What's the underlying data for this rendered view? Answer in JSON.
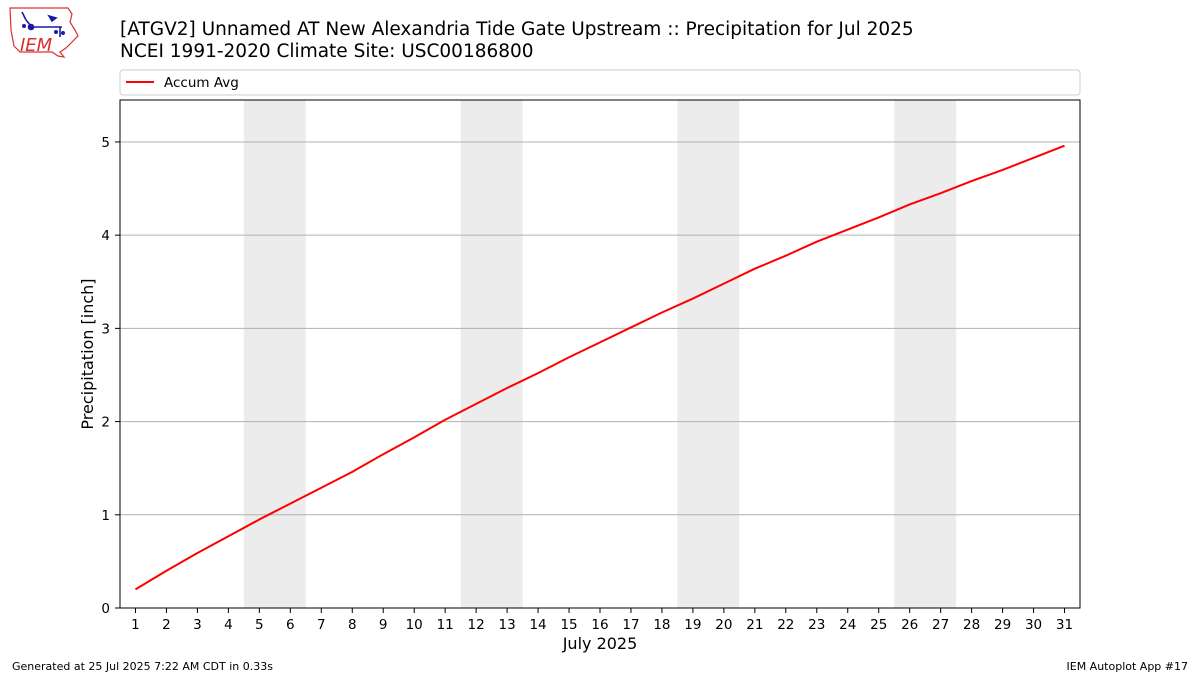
{
  "header": {
    "title_line1": "[ATGV2] Unnamed  AT New Alexandria Tide Gate Upstream :: Precipitation for Jul 2025",
    "title_line2": "NCEI 1991-2020 Climate Site: USC00186800",
    "logo_text": "IEM"
  },
  "footer": {
    "generated": "Generated at 25 Jul 2025 7:22 AM CDT in 0.33s",
    "app": "IEM Autoplot App #17"
  },
  "colors": {
    "line": "#ff0000",
    "weekend_band": "#ececec",
    "grid": "#b0b0b0",
    "logo": "#1a1aa8",
    "logo_text": "#d93030"
  },
  "chart_data": {
    "type": "line",
    "xlabel": "July 2025",
    "ylabel": "Precipitation [inch]",
    "x": [
      1,
      2,
      3,
      4,
      5,
      6,
      7,
      8,
      9,
      10,
      11,
      12,
      13,
      14,
      15,
      16,
      17,
      18,
      19,
      20,
      21,
      22,
      23,
      24,
      25,
      26,
      27,
      28,
      29,
      30,
      31
    ],
    "xlim": [
      0.5,
      31.5
    ],
    "ylim": [
      0,
      5.45
    ],
    "yticks": [
      0,
      1,
      2,
      3,
      4,
      5
    ],
    "grid": "y",
    "legend_position": "top",
    "weekend_bands": [
      [
        4.5,
        6.5
      ],
      [
        11.5,
        13.5
      ],
      [
        18.5,
        20.5
      ],
      [
        25.5,
        27.5
      ]
    ],
    "series": [
      {
        "name": "Accum Avg",
        "color": "#ff0000",
        "values": [
          0.2,
          0.4,
          0.59,
          0.77,
          0.95,
          1.12,
          1.29,
          1.46,
          1.65,
          1.83,
          2.02,
          2.19,
          2.36,
          2.52,
          2.69,
          2.85,
          3.01,
          3.17,
          3.32,
          3.48,
          3.64,
          3.78,
          3.93,
          4.06,
          4.19,
          4.33,
          4.45,
          4.58,
          4.7,
          4.83,
          4.96
        ]
      }
    ]
  }
}
